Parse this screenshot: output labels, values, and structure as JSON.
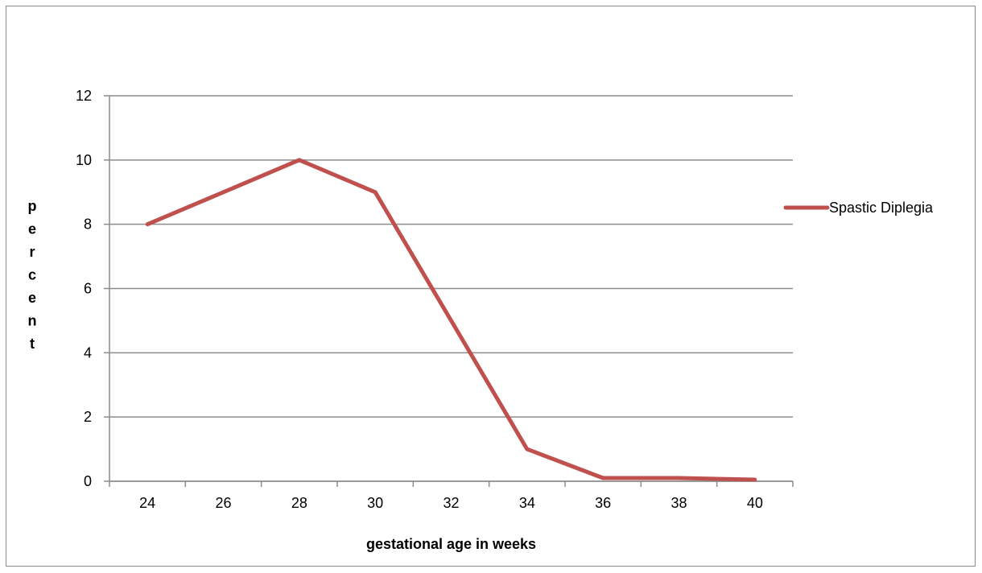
{
  "chart_data": {
    "type": "line",
    "title": "",
    "xlabel": "gestational age in weeks",
    "ylabel": "percent",
    "x": [
      24,
      26,
      28,
      30,
      32,
      34,
      36,
      38,
      40
    ],
    "categories": [
      "24",
      "26",
      "28",
      "30",
      "32",
      "34",
      "36",
      "38",
      "40"
    ],
    "series": [
      {
        "name": "Spastic Diplegia",
        "color": "#c0504d",
        "values": [
          8,
          9,
          10,
          9,
          5,
          1,
          0.1,
          0.1,
          0.05
        ]
      }
    ],
    "ylim": [
      0,
      12
    ],
    "yticks": [
      0,
      2,
      4,
      6,
      8,
      10,
      12
    ],
    "grid": "horizontal",
    "legend_position": "right"
  }
}
